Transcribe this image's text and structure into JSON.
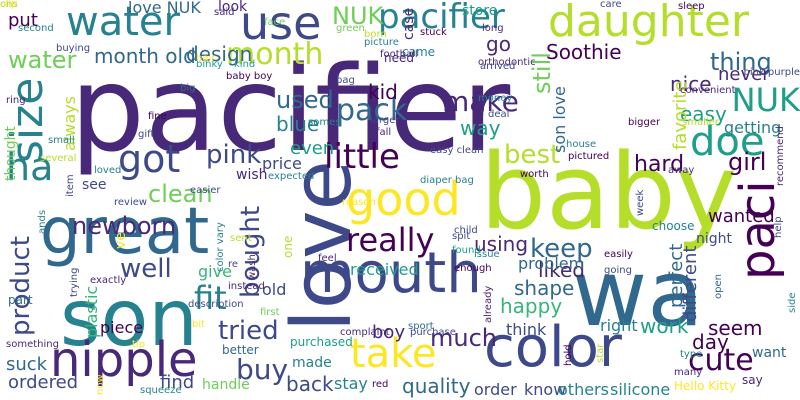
{
  "wordcloud": {
    "palette": [
      "#440154",
      "#482878",
      "#3e4989",
      "#31688e",
      "#26828e",
      "#1f9e89",
      "#35b779",
      "#6ece58",
      "#b5de2b",
      "#fde725"
    ],
    "words": [
      {
        "text": "pacifier",
        "color": "#482878"
      },
      {
        "text": "baby",
        "color": "#b5de2b"
      },
      {
        "text": "wa",
        "color": "#31688e"
      },
      {
        "text": "love",
        "color": "#3e4989"
      },
      {
        "text": "son",
        "color": "#26828e"
      },
      {
        "text": "great",
        "color": "#31688e"
      },
      {
        "text": "mouth",
        "color": "#3e4989"
      },
      {
        "text": "color",
        "color": "#3e4989"
      },
      {
        "text": "nipple",
        "color": "#482878"
      },
      {
        "text": "daughter",
        "color": "#b5de2b"
      },
      {
        "text": "paci",
        "color": "#440154"
      },
      {
        "text": "size",
        "color": "#26828e"
      },
      {
        "text": "use",
        "color": "#3e4989"
      },
      {
        "text": "water",
        "color": "#26828e"
      },
      {
        "text": "good",
        "color": "#fde725"
      },
      {
        "text": "take",
        "color": "#fde725"
      },
      {
        "text": "doe",
        "color": "#1f9e89"
      },
      {
        "text": "ha",
        "color": "#26828e"
      },
      {
        "text": "got",
        "color": "#3e4989"
      },
      {
        "text": "little",
        "color": "#440154"
      },
      {
        "text": "really",
        "color": "#440154"
      },
      {
        "text": "cute",
        "color": "#440154"
      },
      {
        "text": "fit",
        "color": "#26828e"
      },
      {
        "text": "NUK",
        "color": "#1f9e89"
      },
      {
        "text": "pacifier",
        "color": "#26828e"
      },
      {
        "text": "month",
        "color": "#b5de2b"
      },
      {
        "text": "pack",
        "color": "#31688e"
      },
      {
        "text": "make",
        "color": "#482878"
      },
      {
        "text": "buy",
        "color": "#3e4989"
      },
      {
        "text": "tried",
        "color": "#3e4989"
      },
      {
        "text": "well",
        "color": "#3e4989"
      },
      {
        "text": "product",
        "color": "#3e4989"
      },
      {
        "text": "bought",
        "color": "#3e4989"
      },
      {
        "text": "pink",
        "color": "#3e4989"
      },
      {
        "text": "best",
        "color": "#b5de2b"
      },
      {
        "text": "keep",
        "color": "#31688e"
      },
      {
        "text": "clean",
        "color": "#6ece58"
      },
      {
        "text": "thing",
        "color": "#31688e"
      },
      {
        "text": "still",
        "color": "#6ece58"
      },
      {
        "text": "used",
        "color": "#31688e"
      },
      {
        "text": "girl",
        "color": "#440154"
      },
      {
        "text": "much",
        "color": "#482878"
      },
      {
        "text": "newborn",
        "color": "#482878"
      },
      {
        "text": "month old",
        "color": "#31688e"
      },
      {
        "text": "design",
        "color": "#31688e"
      },
      {
        "text": "Soothie",
        "color": "#440154"
      },
      {
        "text": "NUK",
        "color": "#6ece58"
      },
      {
        "text": "water",
        "color": "#6ece58"
      },
      {
        "text": "go",
        "color": "#482878"
      },
      {
        "text": "put",
        "color": "#440154"
      },
      {
        "text": "store",
        "color": "#1f9e89"
      },
      {
        "text": "love NUK",
        "color": "#31688e"
      },
      {
        "text": "blue",
        "color": "#26828e"
      },
      {
        "text": "kid",
        "color": "#440154"
      },
      {
        "text": "way",
        "color": "#1f9e89"
      },
      {
        "text": "even",
        "color": "#1f9e89"
      },
      {
        "text": "price",
        "color": "#3e4989"
      },
      {
        "text": "wish",
        "color": "#482878"
      },
      {
        "text": "see",
        "color": "#3e4989"
      },
      {
        "text": "nice",
        "color": "#482878"
      },
      {
        "text": "never",
        "color": "#482878"
      },
      {
        "text": "easy",
        "color": "#1f9e89"
      },
      {
        "text": "favorite",
        "color": "#b5de2b"
      },
      {
        "text": "hard",
        "color": "#440154"
      },
      {
        "text": "getting",
        "color": "#26828e"
      },
      {
        "text": "wanted",
        "color": "#440154"
      },
      {
        "text": "different",
        "color": "#3e4989"
      },
      {
        "text": "perfect",
        "color": "#31688e"
      },
      {
        "text": "liked",
        "color": "#482878"
      },
      {
        "text": "using",
        "color": "#482878"
      },
      {
        "text": "shape",
        "color": "#31688e"
      },
      {
        "text": "happy",
        "color": "#35b779"
      },
      {
        "text": "received",
        "color": "#1f9e89"
      },
      {
        "text": "give",
        "color": "#35b779"
      },
      {
        "text": "piece",
        "color": "#440154"
      },
      {
        "text": "old",
        "color": "#3e4989"
      },
      {
        "text": "problem",
        "color": "#31688e"
      },
      {
        "text": "boy",
        "color": "#482878"
      },
      {
        "text": "work",
        "color": "#1f9e89"
      },
      {
        "text": "right",
        "color": "#26828e"
      },
      {
        "text": "day",
        "color": "#440154"
      },
      {
        "text": "seem",
        "color": "#440154"
      },
      {
        "text": "want",
        "color": "#31688e"
      },
      {
        "text": "back",
        "color": "#3e4989"
      },
      {
        "text": "stay",
        "color": "#26828e"
      },
      {
        "text": "quality",
        "color": "#31688e"
      },
      {
        "text": "order",
        "color": "#3e4989"
      },
      {
        "text": "know",
        "color": "#3e4989"
      },
      {
        "text": "others",
        "color": "#26828e"
      },
      {
        "text": "silicone",
        "color": "#26828e"
      },
      {
        "text": "one",
        "color": "#b5de2b"
      },
      {
        "text": "ordered",
        "color": "#3e4989"
      },
      {
        "text": "find",
        "color": "#3e4989"
      },
      {
        "text": "handle",
        "color": "#6ece58"
      },
      {
        "text": "suck",
        "color": "#31688e"
      },
      {
        "text": "plastic",
        "color": "#35b779"
      },
      {
        "text": "always",
        "color": "#b5de2b"
      },
      {
        "text": "thought",
        "color": "#6ece58"
      },
      {
        "text": "son love",
        "color": "#31688e"
      },
      {
        "text": "think",
        "color": "#3e4989"
      },
      {
        "text": "night",
        "color": "#3e4989"
      },
      {
        "text": "part",
        "color": "#31688e"
      },
      {
        "text": "need",
        "color": "#482878"
      },
      {
        "text": "came",
        "color": "#26828e"
      },
      {
        "text": "case",
        "color": "#482878"
      },
      {
        "text": "look",
        "color": "#482878"
      },
      {
        "text": "ve",
        "color": "#fde725"
      },
      {
        "text": "ands",
        "color": "#26828e"
      },
      {
        "text": "made",
        "color": "#26828e"
      },
      {
        "text": "say",
        "color": "#482878"
      },
      {
        "text": "Hello Kitty",
        "color": "#fde725"
      },
      {
        "text": "squeeze",
        "color": "#26828e"
      },
      {
        "text": "purchased",
        "color": "#1f9e89"
      },
      {
        "text": "better",
        "color": "#31688e"
      },
      {
        "text": "something",
        "color": "#482878"
      },
      {
        "text": "complaint",
        "color": "#482878"
      },
      {
        "text": "sport",
        "color": "#31688e"
      },
      {
        "text": "purchase",
        "color": "#3e4989"
      },
      {
        "text": "red",
        "color": "#440154"
      },
      {
        "text": "hold",
        "color": "#440154"
      },
      {
        "text": "many",
        "color": "#482878"
      },
      {
        "text": "type",
        "color": "#26828e"
      },
      {
        "text": "star",
        "color": "#b5de2b"
      },
      {
        "text": "going",
        "color": "#3e4989"
      },
      {
        "text": "open",
        "color": "#31688e"
      },
      {
        "text": "exactly",
        "color": "#482878"
      },
      {
        "text": "trying",
        "color": "#3e4989"
      },
      {
        "text": "instead",
        "color": "#482878"
      },
      {
        "text": "first",
        "color": "#6ece58"
      },
      {
        "text": "child",
        "color": "#3e4989"
      },
      {
        "text": "spit",
        "color": "#3e4989"
      },
      {
        "text": "issue",
        "color": "#26828e"
      },
      {
        "text": "enough",
        "color": "#440154"
      },
      {
        "text": "found",
        "color": "#1f9e89"
      },
      {
        "text": "easily",
        "color": "#440154"
      },
      {
        "text": "choose",
        "color": "#26828e"
      },
      {
        "text": "feel",
        "color": "#482878"
      },
      {
        "text": "wash",
        "color": "#482878"
      },
      {
        "text": "easier",
        "color": "#3e4989"
      },
      {
        "text": "review",
        "color": "#3e4989"
      },
      {
        "text": "reason",
        "color": "#fde725"
      },
      {
        "text": "diaper bag",
        "color": "#26828e"
      },
      {
        "text": "expected",
        "color": "#26828e"
      },
      {
        "text": "worth",
        "color": "#440154"
      },
      {
        "text": "loved",
        "color": "#26828e"
      },
      {
        "text": "item",
        "color": "#3e4989"
      },
      {
        "text": "several",
        "color": "#b5de2b"
      },
      {
        "text": "small",
        "color": "#26828e"
      },
      {
        "text": "ring",
        "color": "#482878"
      },
      {
        "text": "second",
        "color": "#26828e"
      },
      {
        "text": "buying",
        "color": "#3e4989"
      },
      {
        "text": "far",
        "color": "#482878"
      },
      {
        "text": "fine",
        "color": "#440154"
      },
      {
        "text": "gift",
        "color": "#3e4989"
      },
      {
        "text": "big",
        "color": "#31688e"
      },
      {
        "text": "binky",
        "color": "#1f9e89"
      },
      {
        "text": "hair",
        "color": "#fde725"
      },
      {
        "text": "baby boy",
        "color": "#440154"
      },
      {
        "text": "kind",
        "color": "#1f9e89"
      },
      {
        "text": "said",
        "color": "#482878"
      },
      {
        "text": "face",
        "color": "#6ece58"
      },
      {
        "text": "green",
        "color": "#6ece58"
      },
      {
        "text": "born",
        "color": "#b5de2b"
      },
      {
        "text": "picture",
        "color": "#26828e"
      },
      {
        "text": "football",
        "color": "#482878"
      },
      {
        "text": "bag",
        "color": "#3e4989"
      },
      {
        "text": "somes",
        "color": "#26828e"
      },
      {
        "text": "stuck",
        "color": "#440154"
      },
      {
        "text": "long",
        "color": "#482878"
      },
      {
        "text": "orthodontic",
        "color": "#482878"
      },
      {
        "text": "arrived",
        "color": "#3e4989"
      },
      {
        "text": "money",
        "color": "#26828e"
      },
      {
        "text": "deal",
        "color": "#3e4989"
      },
      {
        "text": "larger",
        "color": "#3e4989"
      },
      {
        "text": "fall",
        "color": "#482878"
      },
      {
        "text": "easy clean",
        "color": "#3e4989"
      },
      {
        "text": "care",
        "color": "#3e4989"
      },
      {
        "text": "sleep",
        "color": "#440154"
      },
      {
        "text": "convenient",
        "color": "#482878"
      },
      {
        "text": "smaller",
        "color": "#b5de2b"
      },
      {
        "text": "bigger",
        "color": "#440154"
      },
      {
        "text": "house",
        "color": "#26828e"
      },
      {
        "text": "pictured",
        "color": "#440154"
      },
      {
        "text": "away",
        "color": "#482878"
      },
      {
        "text": "week",
        "color": "#3e4989"
      },
      {
        "text": "recommend",
        "color": "#482878"
      },
      {
        "text": "pink purple",
        "color": "#3e4989"
      },
      {
        "text": "side",
        "color": "#26828e"
      },
      {
        "text": "help",
        "color": "#3e4989"
      },
      {
        "text": "already",
        "color": "#482878"
      },
      {
        "text": "color vary",
        "color": "#26828e"
      },
      {
        "text": "sent",
        "color": "#b5de2b"
      },
      {
        "text": "re",
        "color": "#3e4989"
      },
      {
        "text": "now",
        "color": "#fde725"
      },
      {
        "text": "tip",
        "color": "#fde725"
      },
      {
        "text": "bit",
        "color": "#fde725"
      },
      {
        "text": "description",
        "color": "#3e4989"
      },
      {
        "text": "clip",
        "color": "#fde725"
      },
      {
        "text": "ons",
        "color": "#b5de2b"
      }
    ]
  }
}
